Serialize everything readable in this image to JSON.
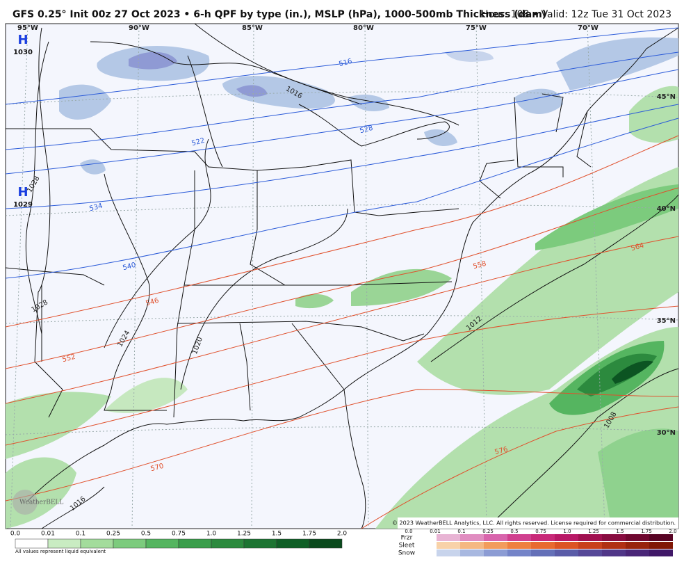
{
  "header": {
    "title": "GFS 0.25° Init 00z 27 Oct 2023 • 6-h QPF by type (in.), MSLP (hPa), 1000-500mb Thickness (dam)",
    "valid": "Hour: 108 • Valid: 12z Tue 31 Oct 2023"
  },
  "map": {
    "longitudes": [
      "95°W",
      "90°W",
      "85°W",
      "80°W",
      "75°W",
      "70°W"
    ],
    "latitudes": [
      "45°N",
      "40°N",
      "35°N",
      "30°N"
    ],
    "highs": [
      {
        "symbol": "H",
        "pressure": "1030"
      },
      {
        "symbol": "H",
        "pressure": "1029"
      }
    ],
    "thickness_labels": [
      "516",
      "522",
      "528",
      "534",
      "540",
      "546",
      "552",
      "558",
      "564",
      "570",
      "576"
    ],
    "isobar_labels": [
      "1016",
      "1028",
      "1028",
      "1024",
      "1020",
      "1012",
      "1008",
      "1016"
    ],
    "copyright": "© 2023 WeatherBELL Analytics, LLC. All rights reserved. License required for commercial distribution.",
    "logo": "WeatherBELL"
  },
  "legend": {
    "rain_ticks": [
      "0.0",
      "0.01",
      "0.1",
      "0.25",
      "0.5",
      "0.75",
      "1.0",
      "1.25",
      "1.5",
      "1.75",
      "2.0"
    ],
    "note": "All values represent liquid equivalent",
    "types": [
      "Frzr",
      "Sleet",
      "Snow"
    ],
    "type_ticks": [
      "0.0",
      "0.01",
      "0.1",
      "0.25",
      "0.5",
      "0.75",
      "1.0",
      "1.25",
      "1.5",
      "1.75",
      "2.0"
    ]
  }
}
